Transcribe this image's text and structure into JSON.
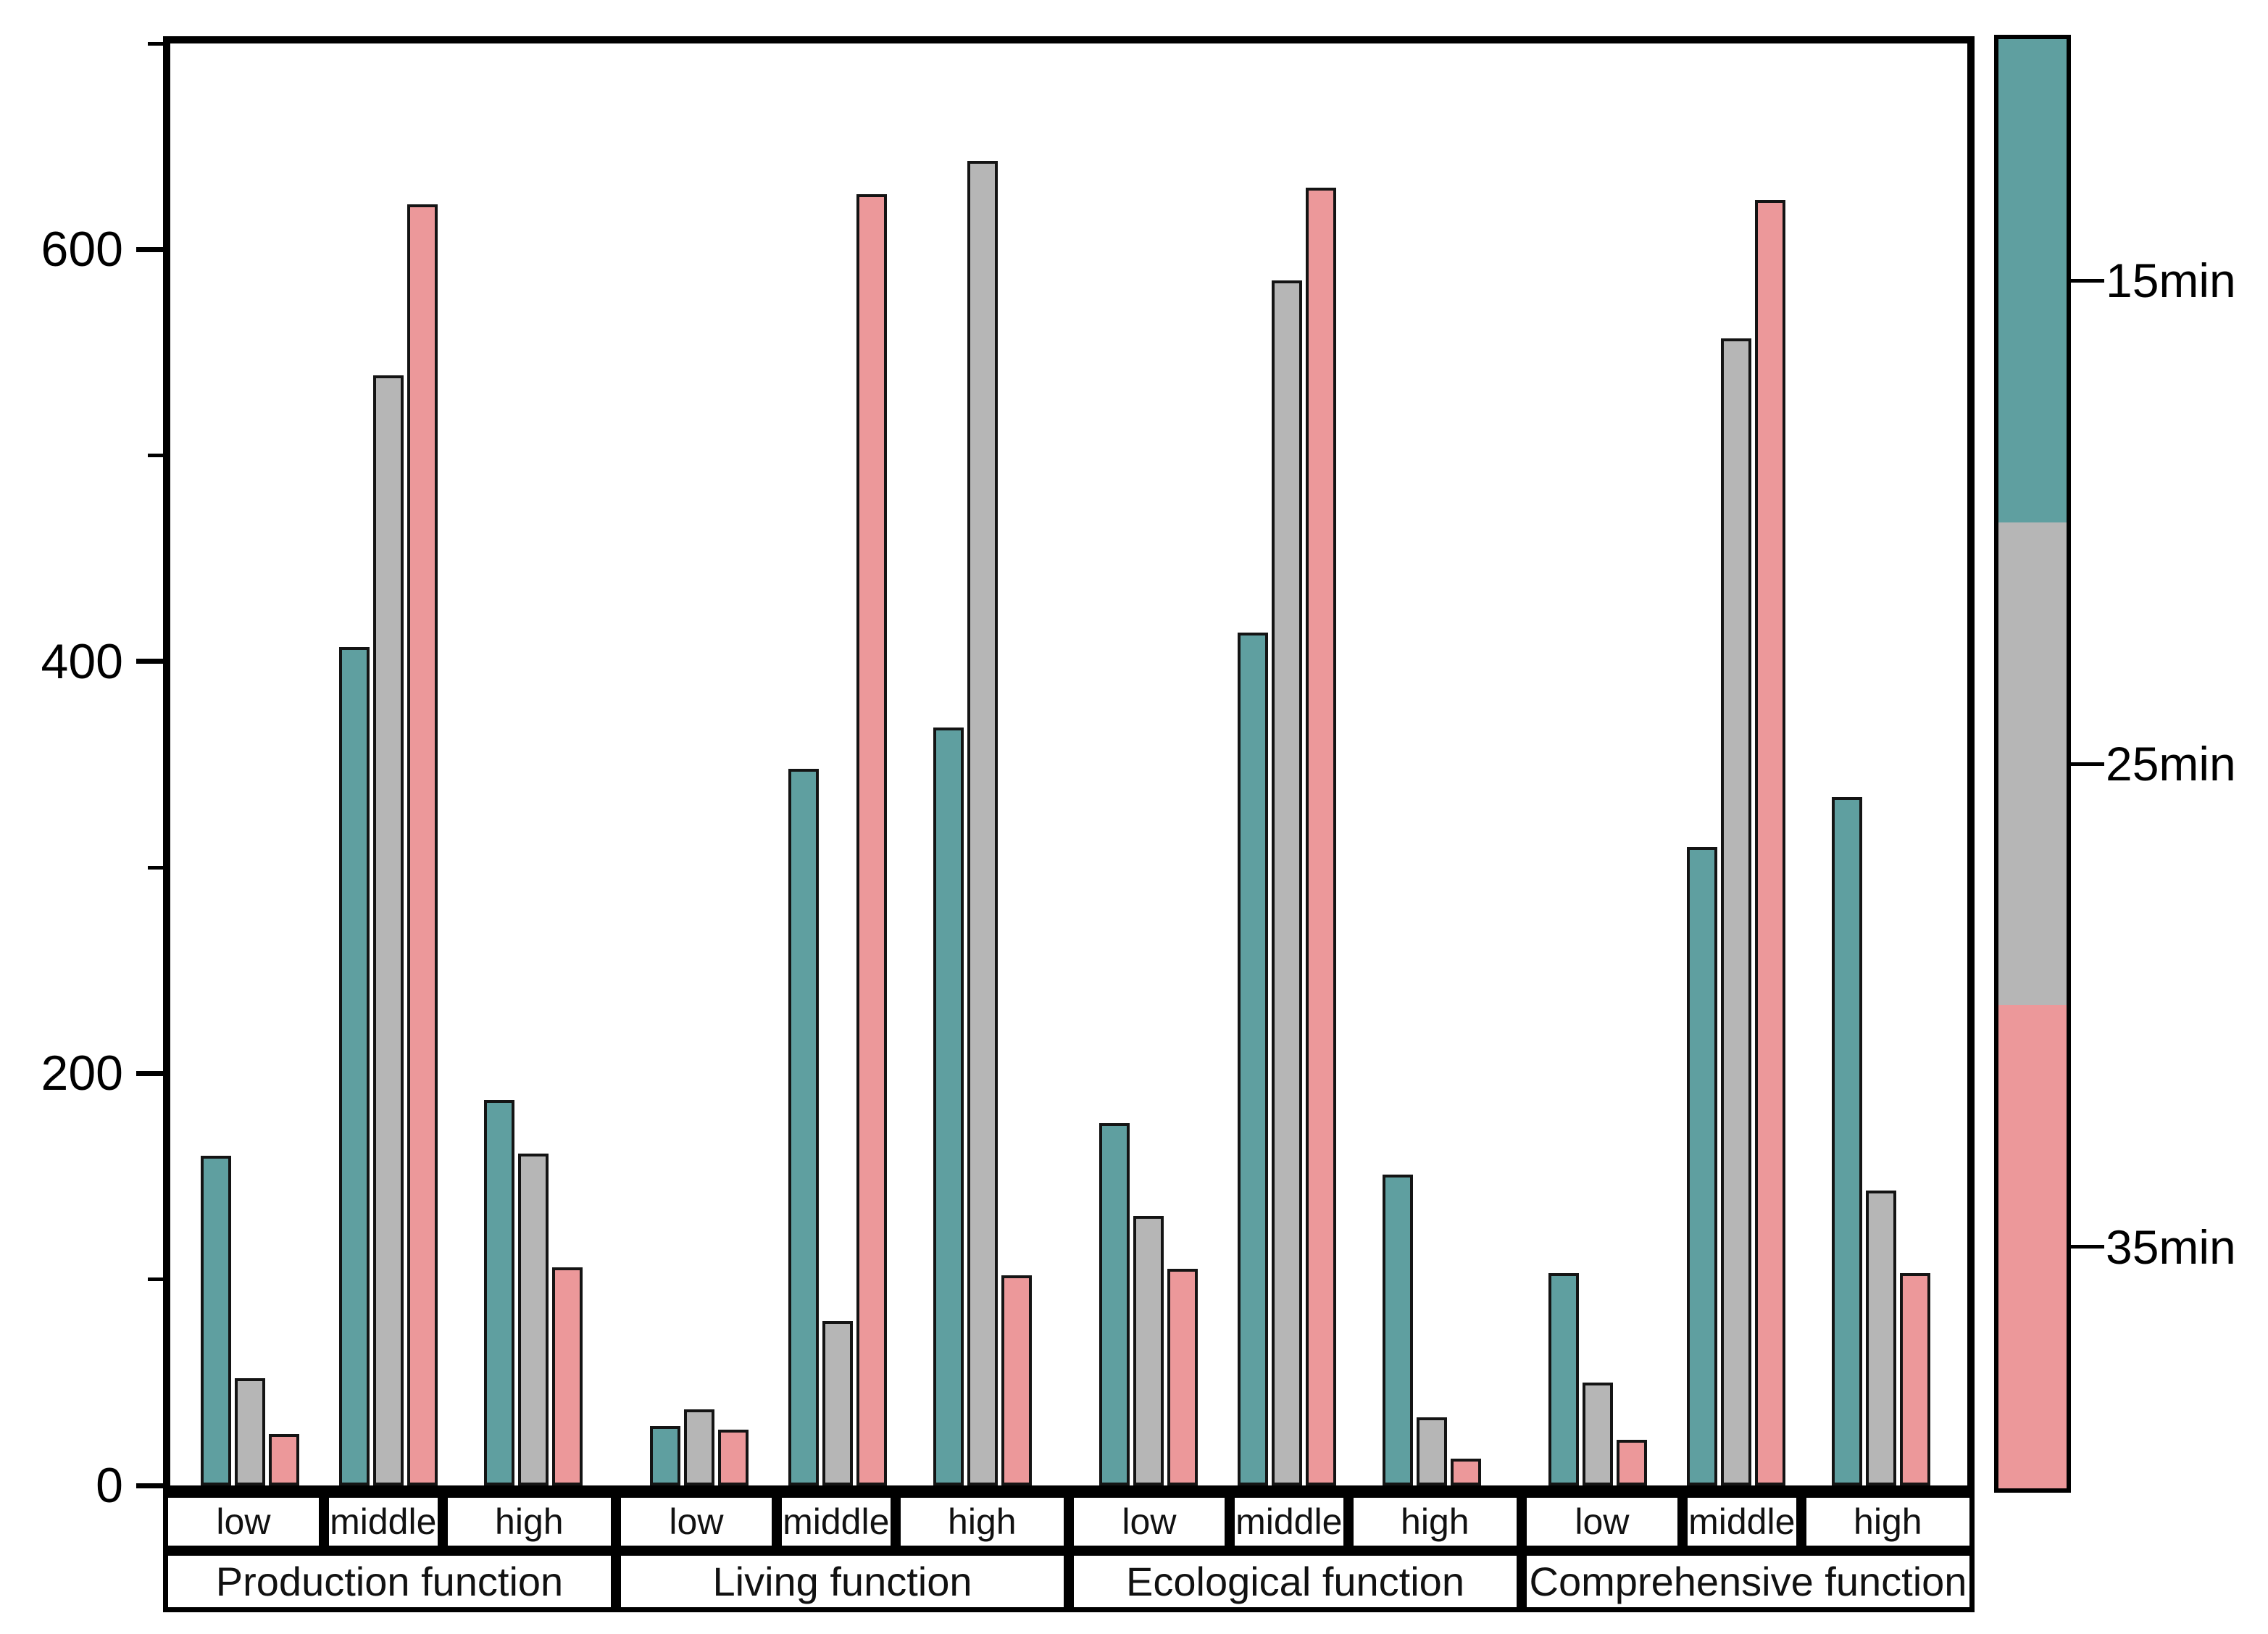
{
  "legend": {
    "labels": [
      "15min",
      "25min",
      "35min"
    ]
  },
  "y_axis": {
    "tick_labels": [
      "0",
      "200",
      "400",
      "600"
    ]
  },
  "chart_data": {
    "type": "bar",
    "title": "",
    "xlabel": "",
    "ylabel": "",
    "ylim": [
      0,
      700
    ],
    "yticks_major": [
      0,
      200,
      400,
      600
    ],
    "yticks_minor": [
      100,
      300,
      500,
      700
    ],
    "grid": false,
    "legend_position": "right-colorbar",
    "groups": [
      "Production function",
      "Living function",
      "Ecological function",
      "Comprehensive function"
    ],
    "subcategories": [
      "low",
      "middle",
      "high"
    ],
    "series": [
      {
        "name": "15min",
        "color": "#5f9fa0",
        "values": [
          [
            160,
            407,
            187
          ],
          [
            29,
            348,
            368
          ],
          [
            176,
            414,
            151
          ],
          [
            103,
            310,
            334
          ]
        ]
      },
      {
        "name": "25min",
        "color": "#b6b6b6",
        "values": [
          [
            52,
            539,
            161
          ],
          [
            37,
            80,
            643
          ],
          [
            131,
            585,
            33
          ],
          [
            50,
            557,
            143
          ]
        ]
      },
      {
        "name": "35min",
        "color": "#ec989a",
        "values": [
          [
            25,
            622,
            106
          ],
          [
            27,
            627,
            102
          ],
          [
            105,
            630,
            13
          ],
          [
            22,
            624,
            103
          ]
        ]
      }
    ]
  }
}
